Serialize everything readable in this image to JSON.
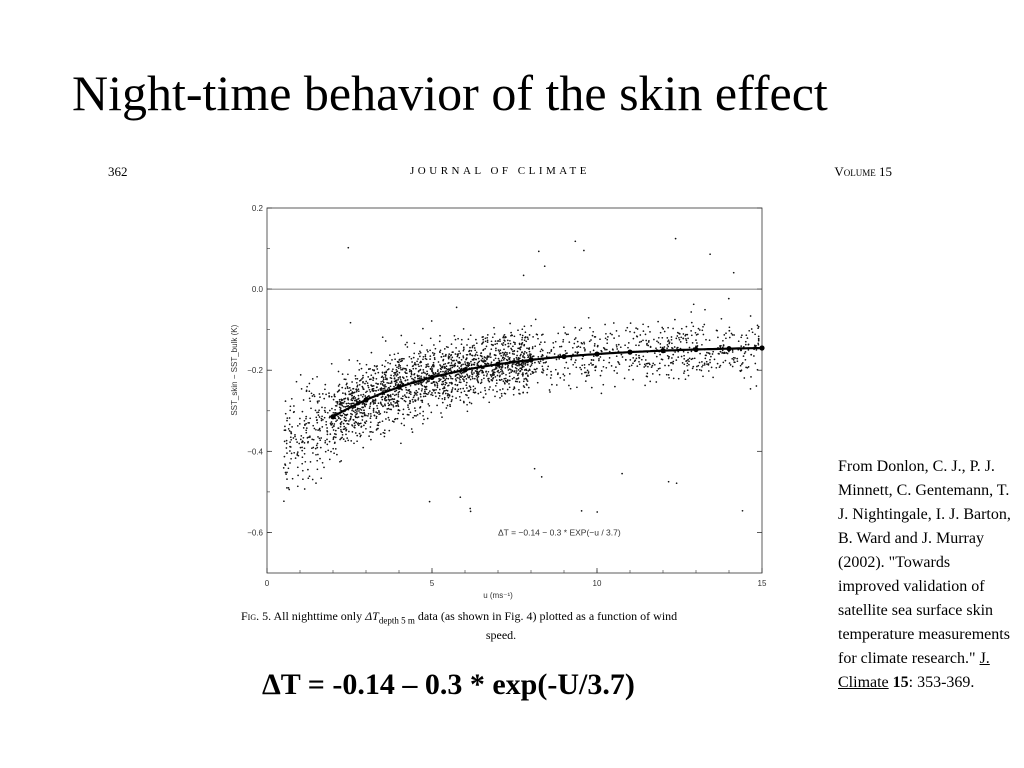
{
  "slide": {
    "title": "Night-time behavior of the skin effect",
    "formula": "ΔT = -0.14 – 0.3 * exp(-U/3.7)"
  },
  "journal_header": {
    "page_number": "362",
    "journal": "JOURNAL OF CLIMATE",
    "volume": "Volume 15"
  },
  "figure_caption": {
    "lead": "Fig. 5.",
    "part1": "All nighttime only",
    "delta_t": "ΔT",
    "subscript": "depth 5 m",
    "part2": "data (as shown in Fig. 4) plotted as a function of wind",
    "part3": "speed."
  },
  "citation": {
    "text": "From Donlon, C. J., P. J. Minnett, C. Gentemann, T. J. Nightingale, I. J. Barton, B. Ward and J. Murray (2002). \"Towards improved validation of satellite sea surface skin temperature measurements for climate research.\"",
    "journal_link": "J. Climate",
    "volume": "15",
    "pages": ": 353-369."
  },
  "chart_data": {
    "type": "scatter",
    "xlabel": "u (ms⁻¹)",
    "ylabel": "SST_skin − SST_bulk (K)",
    "xlim": [
      0,
      15
    ],
    "ylim": [
      -0.7,
      0.2
    ],
    "x_ticks": [
      "0",
      "5",
      "10",
      "15"
    ],
    "y_ticks": [
      "0.2",
      "0.0",
      "−0.2",
      "−0.4",
      "−0.6"
    ],
    "annotation": "ΔT = −0.14 − 0.3 * EXP(−u / 3.7)",
    "grid": false,
    "reference_line_y": 0,
    "fit": {
      "a": -0.14,
      "b": -0.3,
      "scale": 3.7,
      "x_start": 2,
      "x_end": 15,
      "marker_x": [
        2,
        3,
        4,
        5,
        6,
        7,
        8,
        9,
        10,
        11,
        12,
        13,
        14,
        15
      ]
    }
  }
}
